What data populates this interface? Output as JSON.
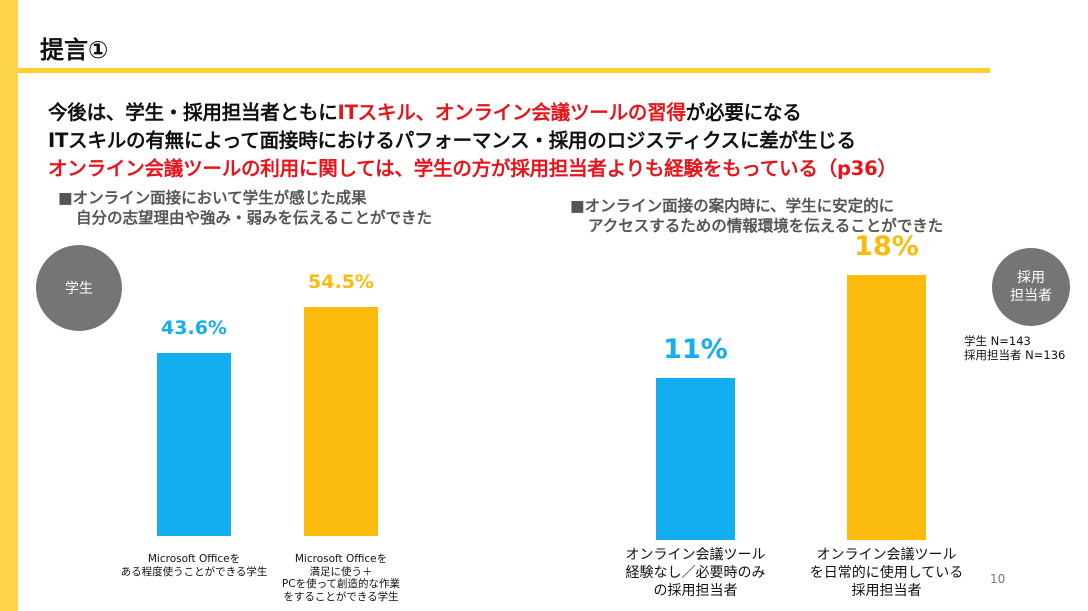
{
  "slide": {
    "title": "提言①",
    "page_number": "10"
  },
  "headline": {
    "line1": {
      "p1": "今後は、学生・採用担当者ともに",
      "p2": "ITスキル、オンライン会議ツールの習得",
      "p3": "が必要になる"
    },
    "line2": "ITスキルの有無によって面接時におけるパフォーマンス・採用のロジスティクスに差が生じる",
    "line3": "オンライン会議ツールの利用に関しては、学生の方が採用担当者よりも経験をもっている（p36）"
  },
  "left_panel": {
    "subtitle_line1": "■オンライン面接において学生が感じた成果",
    "subtitle_line2": "自分の志望理由や強み・弱みを伝えることができた",
    "badge": "学生"
  },
  "right_panel": {
    "subtitle_line1": "■オンライン面接の案内時に、学生に安定的に",
    "subtitle_line2": "アクセスするための情報環境を伝えることができた",
    "badge_line1": "採用",
    "badge_line2": "担当者"
  },
  "sample_note": {
    "line1": "学生 N=143",
    "line2": "採用担当者 N=136"
  },
  "colors": {
    "accent_yellow": "#fbbb0c",
    "accent_blue": "#13aef0",
    "emphasis_red": "#e8141c",
    "strip": "#ffd44d"
  },
  "chart_data": [
    {
      "type": "bar",
      "categories": [
        "Microsoft Officeを ある程度使うことができる学生",
        "Microsoft Officeを 満足に使う＋ PCを使って創造的な作業 をすることができる学生"
      ],
      "category_lines": [
        [
          "Microsoft Officeを",
          "ある程度使うことができる学生"
        ],
        [
          "Microsoft Officeを",
          "満足に使う＋",
          "PCを使って創造的な作業",
          "をすることができる学生"
        ]
      ],
      "values": [
        43.6,
        54.5
      ],
      "value_labels": [
        "43.6%",
        "54.5%"
      ],
      "colors": [
        "#13aef0",
        "#fbbb0c"
      ],
      "ylim": [
        0,
        100
      ]
    },
    {
      "type": "bar",
      "categories": [
        "オンライン会議ツール 経験なし／必要時のみ の採用担当者",
        "オンライン会議ツール を日常的に使用している 採用担当者"
      ],
      "category_lines": [
        [
          "オンライン会議ツール",
          "経験なし／必要時のみ",
          "の採用担当者"
        ],
        [
          "オンライン会議ツール",
          "を日常的に使用している",
          "採用担当者"
        ]
      ],
      "values": [
        11,
        18
      ],
      "value_labels": [
        "11%",
        "18%"
      ],
      "colors": [
        "#13aef0",
        "#fbbb0c"
      ],
      "ylim": [
        0,
        20
      ]
    }
  ]
}
